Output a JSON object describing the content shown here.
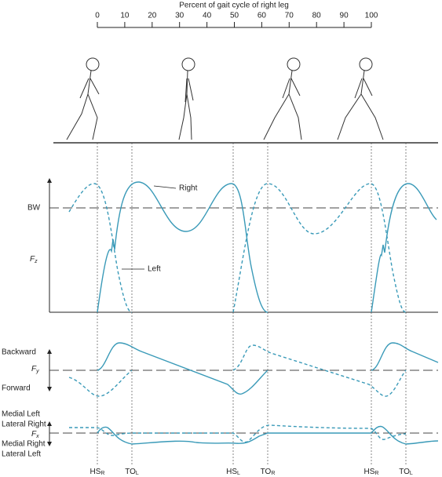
{
  "header": {
    "title": "Percent of gait cycle of right leg",
    "ticks": [
      0,
      10,
      20,
      30,
      40,
      50,
      60,
      70,
      80,
      90,
      100
    ]
  },
  "fz": {
    "bw": "BW",
    "axis": "F",
    "axis_sub": "z",
    "right": "Right",
    "left": "Left"
  },
  "fy": {
    "top": "Backward",
    "axis": "F",
    "axis_sub": "y",
    "bottom": "Forward"
  },
  "fx": {
    "top1": "Medial Left",
    "top2": "Lateral Right",
    "axis": "F",
    "axis_sub": "x",
    "bottom1": "Medial Right",
    "bottom2": "Lateral Left"
  },
  "events": [
    {
      "label": "HS",
      "sub": "R"
    },
    {
      "label": "TO",
      "sub": "L"
    },
    {
      "label": "HS",
      "sub": "L"
    },
    {
      "label": "TO",
      "sub": "R"
    },
    {
      "label": "HS",
      "sub": "R"
    },
    {
      "label": "TO",
      "sub": "L"
    }
  ]
}
